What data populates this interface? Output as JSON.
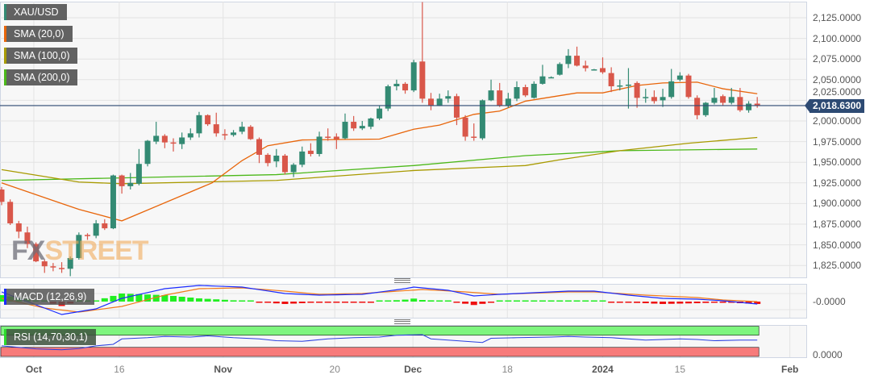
{
  "legend": [
    {
      "label": "XAU/USD",
      "color": "#338a73"
    },
    {
      "label": "SMA (20,0)",
      "color": "#e8650a"
    },
    {
      "label": "SMA (100,0)",
      "color": "#a89a00"
    },
    {
      "label": "SMA (200,0)",
      "color": "#4cb81a"
    }
  ],
  "indicators": {
    "macd_label": "MACD (12,26,9)",
    "macd_color": "#1a2bff",
    "rsi_label": "RSI (14,70,30,1)",
    "rsi_color": "#2bd92b",
    "macd_axis": "-0.0000",
    "rsi_axis": "0.0000"
  },
  "y_axis": [
    "2,125.0000",
    "2,100.0000",
    "2,075.0000",
    "2,050.0000",
    "2,025.0000",
    "2,000.0000",
    "1,975.0000",
    "1,950.0000",
    "1,925.0000",
    "1,900.0000",
    "1,875.0000",
    "1,850.0000",
    "1,825.0000"
  ],
  "current_price": "2,018.6300",
  "current_price_value": 2018.63,
  "x_axis": [
    {
      "label": "Oct",
      "bold": true,
      "index": 3.75
    },
    {
      "label": "16",
      "bold": false,
      "index": 13.7
    },
    {
      "label": "Nov",
      "bold": true,
      "index": 25.8
    },
    {
      "label": "20",
      "bold": false,
      "index": 38.8
    },
    {
      "label": "Dec",
      "bold": true,
      "index": 47.9
    },
    {
      "label": "18",
      "bold": false,
      "index": 58.9
    },
    {
      "label": "2024",
      "bold": true,
      "index": 70.0
    },
    {
      "label": "15",
      "bold": false,
      "index": 79.0
    },
    {
      "label": "Feb",
      "bold": true,
      "index": 91.8
    }
  ],
  "watermark": {
    "fx": "FX",
    "street": "STREET"
  },
  "colors": {
    "up": "#338a73",
    "down": "#d9574a",
    "price_line": "#2d4a73",
    "hist_up": "#22ee22",
    "hist_down": "#ee1111",
    "signal": "#f07a1a"
  },
  "chart_data": {
    "type": "candlestick",
    "symbol": "XAU/USD",
    "ylim": [
      1810,
      2150
    ],
    "ohlc": [
      [
        1917,
        1920,
        1898,
        1902
      ],
      [
        1902,
        1905,
        1874,
        1876
      ],
      [
        1876,
        1879,
        1858,
        1866
      ],
      [
        1865,
        1872,
        1846,
        1851
      ],
      [
        1851,
        1853,
        1829,
        1830
      ],
      [
        1830,
        1832,
        1816,
        1824
      ],
      [
        1824,
        1828,
        1818,
        1823
      ],
      [
        1822,
        1829,
        1816,
        1821
      ],
      [
        1821,
        1836,
        1812,
        1834
      ],
      [
        1834,
        1865,
        1832,
        1862
      ],
      [
        1862,
        1864,
        1856,
        1861
      ],
      [
        1861,
        1880,
        1858,
        1876
      ],
      [
        1876,
        1881,
        1868,
        1870
      ],
      [
        1870,
        1935,
        1869,
        1934
      ],
      [
        1934,
        1935,
        1912,
        1921
      ],
      [
        1921,
        1937,
        1917,
        1925
      ],
      [
        1924,
        1966,
        1922,
        1948
      ],
      [
        1948,
        1977,
        1945,
        1976
      ],
      [
        1975,
        1999,
        1972,
        1982
      ],
      [
        1982,
        1984,
        1967,
        1974
      ],
      [
        1974,
        1979,
        1963,
        1973
      ],
      [
        1972,
        1986,
        1966,
        1980
      ],
      [
        1980,
        1991,
        1977,
        1985
      ],
      [
        1985,
        2011,
        1980,
        2007
      ],
      [
        2007,
        2008,
        1994,
        1996
      ],
      [
        1996,
        2010,
        1981,
        1985
      ],
      [
        1984,
        1990,
        1977,
        1983
      ],
      [
        1983,
        1989,
        1981,
        1986
      ],
      [
        1987,
        1999,
        1984,
        1993
      ],
      [
        1993,
        1995,
        1977,
        1978
      ],
      [
        1978,
        1980,
        1949,
        1959
      ],
      [
        1959,
        1961,
        1945,
        1949
      ],
      [
        1951,
        1966,
        1944,
        1958
      ],
      [
        1958,
        1960,
        1935,
        1938
      ],
      [
        1938,
        1949,
        1932,
        1947
      ],
      [
        1947,
        1969,
        1944,
        1963
      ],
      [
        1964,
        1973,
        1957,
        1960
      ],
      [
        1960,
        1987,
        1957,
        1981
      ],
      [
        1981,
        1991,
        1976,
        1980
      ],
      [
        1981,
        1985,
        1966,
        1978
      ],
      [
        1979,
        2009,
        1978,
        1999
      ],
      [
        1999,
        2006,
        1988,
        1991
      ],
      [
        1991,
        2000,
        1989,
        1994
      ],
      [
        1993,
        2004,
        1990,
        2003
      ],
      [
        2003,
        2019,
        2001,
        2015
      ],
      [
        2015,
        2044,
        2012,
        2042
      ],
      [
        2042,
        2050,
        2037,
        2045
      ],
      [
        2045,
        2047,
        2033,
        2037
      ],
      [
        2037,
        2074,
        2035,
        2071
      ],
      [
        2072,
        2144,
        2022,
        2027
      ],
      [
        2027,
        2034,
        2013,
        2019
      ],
      [
        2019,
        2033,
        2018,
        2027
      ],
      [
        2027,
        2037,
        2022,
        2030
      ],
      [
        2030,
        2033,
        1995,
        2004
      ],
      [
        2004,
        2007,
        1976,
        1981
      ],
      [
        1981,
        1997,
        1976,
        1980
      ],
      [
        1979,
        2026,
        1977,
        2025
      ],
      [
        2025,
        2050,
        2024,
        2037
      ],
      [
        2037,
        2046,
        2017,
        2019
      ],
      [
        2019,
        2034,
        2016,
        2027
      ],
      [
        2027,
        2048,
        2024,
        2041
      ],
      [
        2041,
        2044,
        2029,
        2031
      ],
      [
        2028,
        2048,
        2027,
        2045
      ],
      [
        2045,
        2068,
        2044,
        2054
      ],
      [
        2053,
        2054,
        2052,
        2053
      ],
      [
        2056,
        2071,
        2055,
        2069
      ],
      [
        2069,
        2087,
        2064,
        2079
      ],
      [
        2079,
        2090,
        2066,
        2067
      ],
      [
        2067,
        2073,
        2060,
        2064
      ],
      [
        2062,
        2063,
        2062,
        2062.5
      ],
      [
        2064,
        2077,
        2057,
        2059
      ],
      [
        2058,
        2065,
        2035,
        2042
      ],
      [
        2042,
        2050,
        2037,
        2043
      ],
      [
        2043,
        2064,
        2015,
        2044
      ],
      [
        2046,
        2048,
        2016,
        2028
      ],
      [
        2028,
        2039,
        2022,
        2029
      ],
      [
        2029,
        2037,
        2021,
        2024
      ],
      [
        2025,
        2039,
        2017,
        2029
      ],
      [
        2029,
        2063,
        2027,
        2048
      ],
      [
        2050,
        2059,
        2048,
        2055
      ],
      [
        2055,
        2057,
        2027,
        2029
      ],
      [
        2028,
        2031,
        2002,
        2007
      ],
      [
        2007,
        2023,
        2005,
        2022
      ],
      [
        2022,
        2040,
        2020,
        2028
      ],
      [
        2030,
        2032,
        2019,
        2022
      ],
      [
        2022,
        2040,
        2020,
        2029
      ],
      [
        2029,
        2040,
        2011,
        2013
      ],
      [
        2013,
        2024,
        2010,
        2021
      ],
      [
        2021,
        2029,
        2016,
        2019
      ]
    ],
    "sma20": [
      [
        0,
        1925
      ],
      [
        7,
        1900
      ],
      [
        9,
        1893
      ],
      [
        14,
        1879
      ],
      [
        24.5,
        1925
      ],
      [
        28,
        1952
      ],
      [
        31,
        1970
      ],
      [
        35,
        1977
      ],
      [
        44,
        1978
      ],
      [
        48,
        1990
      ],
      [
        51,
        1995
      ],
      [
        55,
        2008
      ],
      [
        58,
        2012
      ],
      [
        61,
        2024
      ],
      [
        67,
        2034
      ],
      [
        70,
        2034
      ],
      [
        74,
        2043
      ],
      [
        77,
        2046
      ],
      [
        81,
        2047
      ],
      [
        84,
        2039
      ],
      [
        88,
        2033
      ]
    ],
    "sma100": [
      [
        0,
        1941
      ],
      [
        9,
        1926
      ],
      [
        14,
        1924
      ],
      [
        32,
        1928
      ],
      [
        48,
        1940
      ],
      [
        61,
        1946
      ],
      [
        65,
        1953
      ],
      [
        72,
        1964
      ],
      [
        80,
        1973
      ],
      [
        88,
        1980
      ]
    ],
    "sma200": [
      [
        0,
        1928
      ],
      [
        32,
        1935
      ],
      [
        48,
        1946
      ],
      [
        61,
        1958
      ],
      [
        72,
        1964
      ],
      [
        88,
        1966
      ]
    ],
    "macd": [
      [
        0,
        12
      ],
      [
        4,
        -4
      ],
      [
        7,
        -16
      ],
      [
        11,
        -9
      ],
      [
        14,
        4
      ],
      [
        19,
        16
      ],
      [
        23,
        20
      ],
      [
        28,
        18
      ],
      [
        33,
        10
      ],
      [
        37,
        8
      ],
      [
        42,
        9
      ],
      [
        47,
        16
      ],
      [
        48,
        18
      ],
      [
        52,
        14
      ],
      [
        55,
        7
      ],
      [
        58,
        9
      ],
      [
        62,
        11
      ],
      [
        66,
        13
      ],
      [
        69,
        13
      ],
      [
        73,
        8
      ],
      [
        77,
        4
      ],
      [
        81,
        3
      ],
      [
        84,
        1
      ],
      [
        88,
        -3
      ]
    ],
    "macd_signal": [
      [
        0,
        4
      ],
      [
        5,
        -8
      ],
      [
        9,
        -13
      ],
      [
        14,
        -6
      ],
      [
        19,
        8
      ],
      [
        23,
        16
      ],
      [
        28,
        17
      ],
      [
        33,
        13
      ],
      [
        37,
        9
      ],
      [
        42,
        10
      ],
      [
        49,
        15
      ],
      [
        54,
        12
      ],
      [
        58,
        9
      ],
      [
        66,
        12
      ],
      [
        69,
        12
      ],
      [
        75,
        8
      ],
      [
        81,
        5
      ],
      [
        84,
        2
      ],
      [
        88,
        0
      ]
    ],
    "rsi": [
      [
        0,
        35
      ],
      [
        4,
        25
      ],
      [
        7,
        22
      ],
      [
        9,
        26
      ],
      [
        11,
        35
      ],
      [
        13,
        40
      ],
      [
        14,
        58
      ],
      [
        17,
        62
      ],
      [
        19,
        66
      ],
      [
        22,
        64
      ],
      [
        24,
        68
      ],
      [
        27,
        62
      ],
      [
        30,
        58
      ],
      [
        32,
        52
      ],
      [
        35,
        50
      ],
      [
        38,
        58
      ],
      [
        41,
        62
      ],
      [
        44,
        64
      ],
      [
        46,
        70
      ],
      [
        49,
        72
      ],
      [
        50,
        58
      ],
      [
        54,
        50
      ],
      [
        56,
        46
      ],
      [
        57,
        60
      ],
      [
        60,
        62
      ],
      [
        64,
        64
      ],
      [
        66,
        66
      ],
      [
        68,
        64
      ],
      [
        71,
        62
      ],
      [
        75,
        54
      ],
      [
        79,
        58
      ],
      [
        81,
        56
      ],
      [
        83,
        52
      ],
      [
        86,
        54
      ],
      [
        88,
        54
      ]
    ],
    "rsi_levels": [
      70,
      30
    ]
  }
}
